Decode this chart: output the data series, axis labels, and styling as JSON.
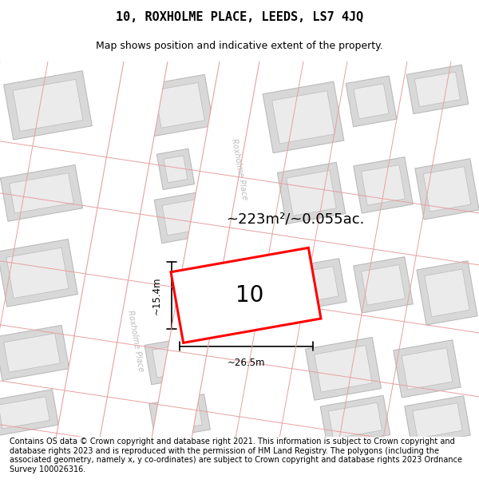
{
  "title": "10, ROXHOLME PLACE, LEEDS, LS7 4JQ",
  "subtitle": "Map shows position and indicative extent of the property.",
  "footer": "Contains OS data © Crown copyright and database right 2021. This information is subject to Crown copyright and database rights 2023 and is reproduced with the permission of HM Land Registry. The polygons (including the associated geometry, namely x, y co-ordinates) are subject to Crown copyright and database rights 2023 Ordnance Survey 100026316.",
  "area_label": "~223m²/~0.055ac.",
  "width_label": "~26.5m",
  "height_label": "~15.4m",
  "plot_number": "10",
  "bg_color": "#ffffff",
  "map_bg": "#f0f0f0",
  "road_line_color": "#e8a0a0",
  "building_color": "#d8d8d8",
  "building_line_color": "#bbbbbb",
  "plot_line_color": "#ff0000",
  "road_label_color": "#bbbbbb",
  "title_fontsize": 11,
  "subtitle_fontsize": 9,
  "footer_fontsize": 7
}
